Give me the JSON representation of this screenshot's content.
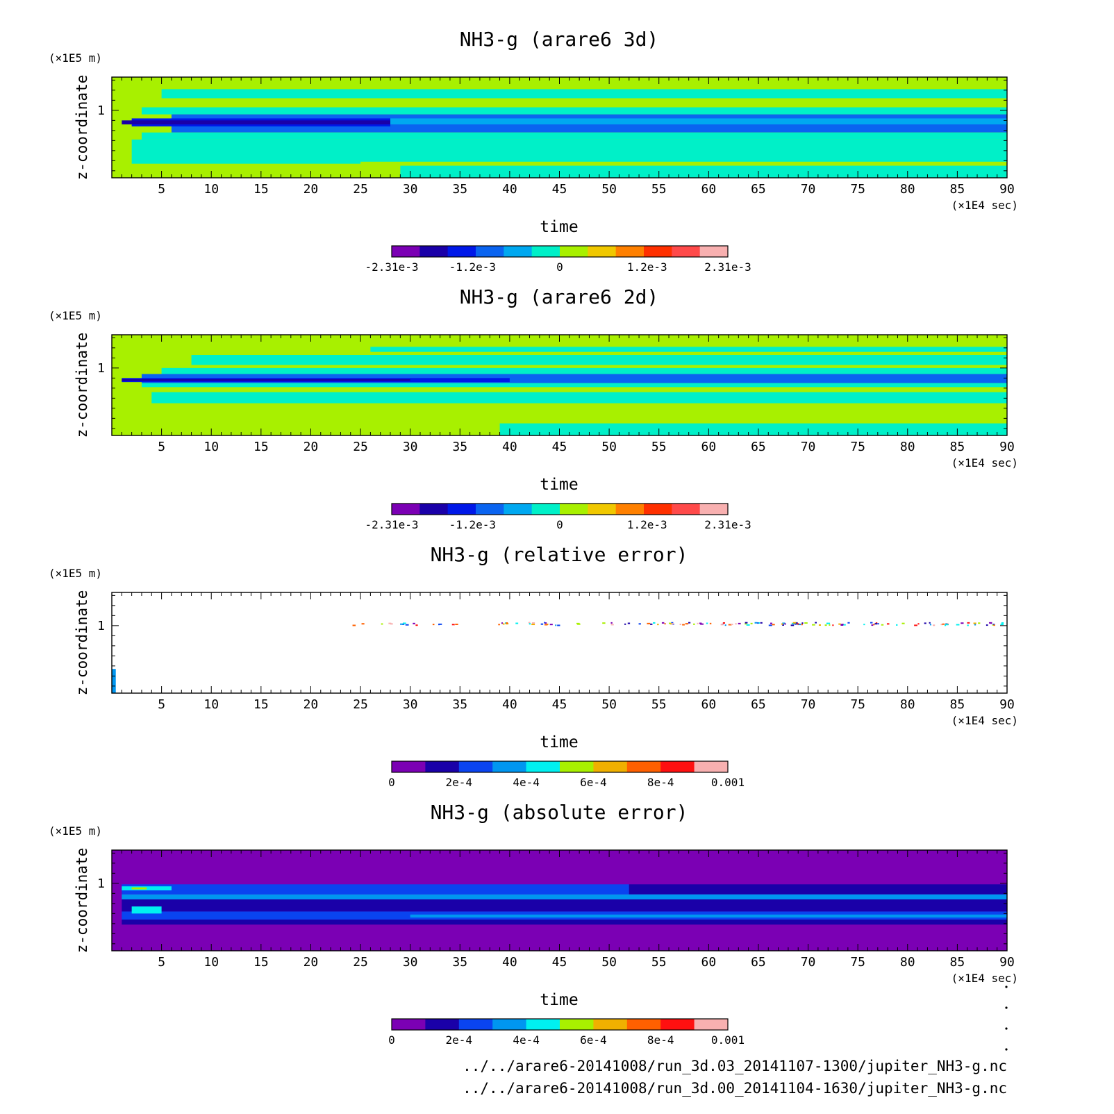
{
  "colors": {
    "signed_palette": [
      "#7b00b4",
      "#1a00a8",
      "#0018e8",
      "#0a64f0",
      "#00a8f0",
      "#00f0c8",
      "#a8f000",
      "#f0c800",
      "#ff8000",
      "#ff3000",
      "#ff4a4a",
      "#f8b0b0"
    ],
    "error_palette": [
      "#7b00b4",
      "#1a00a8",
      "#0a44f0",
      "#0096f0",
      "#00f0f0",
      "#a8f000",
      "#f0b000",
      "#ff6000",
      "#ff1010",
      "#f8b0b0"
    ],
    "background": "#ffffff",
    "axis": "#000000"
  },
  "chart_data": [
    {
      "type": "heatmap",
      "title": "NH3-g (arare6 3d)",
      "xlabel": "time",
      "ylabel": "z-coordinate",
      "x_unit": "(×1E4 sec)",
      "y_unit": "(×1E5 m)",
      "xlim": [
        0,
        90
      ],
      "x_ticks": [
        5,
        10,
        15,
        20,
        25,
        30,
        35,
        40,
        45,
        50,
        55,
        60,
        65,
        70,
        75,
        80,
        85,
        90
      ],
      "y_ticks": [
        1
      ],
      "colorbar": {
        "range": [
          -0.00231,
          0.00231
        ],
        "levels": 12,
        "tick_labels": [
          "-2.31e-3",
          "-1.2e-3",
          "0",
          "1.2e-3",
          "2.31e-3"
        ]
      }
    },
    {
      "type": "heatmap",
      "title": "NH3-g (arare6 2d)",
      "xlabel": "time",
      "ylabel": "z-coordinate",
      "x_unit": "(×1E4 sec)",
      "y_unit": "(×1E5 m)",
      "xlim": [
        0,
        90
      ],
      "x_ticks": [
        5,
        10,
        15,
        20,
        25,
        30,
        35,
        40,
        45,
        50,
        55,
        60,
        65,
        70,
        75,
        80,
        85,
        90
      ],
      "y_ticks": [
        1
      ],
      "colorbar": {
        "range": [
          -0.00231,
          0.00231
        ],
        "levels": 12,
        "tick_labels": [
          "-2.31e-3",
          "-1.2e-3",
          "0",
          "1.2e-3",
          "2.31e-3"
        ]
      }
    },
    {
      "type": "heatmap",
      "title": "NH3-g (relative error)",
      "xlabel": "time",
      "ylabel": "z-coordinate",
      "x_unit": "(×1E4 sec)",
      "y_unit": "(×1E5 m)",
      "xlim": [
        0,
        90
      ],
      "x_ticks": [
        5,
        10,
        15,
        20,
        25,
        30,
        35,
        40,
        45,
        50,
        55,
        60,
        65,
        70,
        75,
        80,
        85,
        90
      ],
      "y_ticks": [
        1
      ],
      "colorbar": {
        "range": [
          0,
          0.001
        ],
        "levels": 10,
        "tick_labels": [
          "0",
          "2e-4",
          "4e-4",
          "6e-4",
          "8e-4",
          "0.001"
        ]
      }
    },
    {
      "type": "heatmap",
      "title": "NH3-g (absolute error)",
      "xlabel": "time",
      "ylabel": "z-coordinate",
      "x_unit": "(×1E4 sec)",
      "y_unit": "(×1E5 m)",
      "xlim": [
        0,
        90
      ],
      "x_ticks": [
        5,
        10,
        15,
        20,
        25,
        30,
        35,
        40,
        45,
        50,
        55,
        60,
        65,
        70,
        75,
        80,
        85,
        90
      ],
      "y_ticks": [
        1
      ],
      "colorbar": {
        "range": [
          0,
          0.001
        ],
        "levels": 10,
        "tick_labels": [
          "0",
          "2e-4",
          "4e-4",
          "6e-4",
          "8e-4",
          "0.001"
        ]
      }
    }
  ],
  "footer": {
    "files": [
      "../../arare6-20141008/run_3d.03_20141107-1300/jupiter_NH3-g.nc",
      "../../arare6-20141008/run_3d.00_20141104-1630/jupiter_NH3-g.nc"
    ]
  }
}
